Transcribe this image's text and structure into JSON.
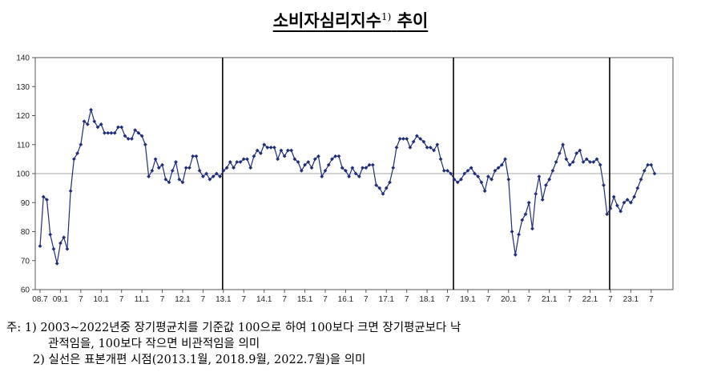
{
  "header": {
    "title": "소비자심리지수",
    "title_sup": "1)",
    "title_suffix": "추이"
  },
  "notes": {
    "prefix": "주:",
    "note1_line1": "1) 2003~2022년중 장기평균치를 기준값 100으로 하여 100보다 크면 장기평균보다 낙",
    "note1_line2": "관적임을, 100보다 작으면 비관적임을 의미",
    "note2": "2) 실선은 표본개편 시점(2013.1월, 2018.9월, 2022.7월)을 의미"
  },
  "colors": {
    "series": "#1f2d7a",
    "axis": "#555555",
    "reference": "#888888",
    "break": "#000000"
  },
  "chart_data": {
    "type": "line",
    "title": "소비자심리지수 추이",
    "ylim": [
      60,
      140
    ],
    "yticks": [
      60,
      70,
      80,
      90,
      100,
      110,
      120,
      130,
      140
    ],
    "reference_line": 100,
    "x_start": "2008-07",
    "x_end": "2023-12",
    "xtick_labels": [
      {
        "month": "2008-07",
        "label": "08.7"
      },
      {
        "month": "2009-01",
        "label": "09.1"
      },
      {
        "month": "2009-07",
        "label": "7"
      },
      {
        "month": "2010-01",
        "label": "10.1"
      },
      {
        "month": "2010-07",
        "label": "7"
      },
      {
        "month": "2011-01",
        "label": "11.1"
      },
      {
        "month": "2011-07",
        "label": "7"
      },
      {
        "month": "2012-01",
        "label": "12.1"
      },
      {
        "month": "2012-07",
        "label": "7"
      },
      {
        "month": "2013-01",
        "label": "13.1"
      },
      {
        "month": "2013-07",
        "label": "7"
      },
      {
        "month": "2014-01",
        "label": "14.1"
      },
      {
        "month": "2014-07",
        "label": "7"
      },
      {
        "month": "2015-01",
        "label": "15.1"
      },
      {
        "month": "2015-07",
        "label": "7"
      },
      {
        "month": "2016-01",
        "label": "16.1"
      },
      {
        "month": "2016-07",
        "label": "7"
      },
      {
        "month": "2017-01",
        "label": "17.1"
      },
      {
        "month": "2017-07",
        "label": "7"
      },
      {
        "month": "2018-01",
        "label": "18.1"
      },
      {
        "month": "2018-07",
        "label": "7"
      },
      {
        "month": "2019-01",
        "label": "19.1"
      },
      {
        "month": "2019-07",
        "label": "7"
      },
      {
        "month": "2020-01",
        "label": "20.1"
      },
      {
        "month": "2020-07",
        "label": "7"
      },
      {
        "month": "2021-01",
        "label": "21.1"
      },
      {
        "month": "2021-07",
        "label": "7"
      },
      {
        "month": "2022-01",
        "label": "22.1"
      },
      {
        "month": "2022-07",
        "label": "7"
      },
      {
        "month": "2023-01",
        "label": "23.1"
      },
      {
        "month": "2023-07",
        "label": "7"
      }
    ],
    "break_lines": [
      "2013-01",
      "2018-09",
      "2022-07"
    ],
    "series": [
      {
        "values": [
          75,
          92,
          91,
          79,
          74,
          69,
          76,
          78,
          74,
          94,
          105,
          107,
          110,
          118,
          117,
          122,
          118,
          116,
          117,
          114,
          114,
          114,
          114,
          116,
          116,
          113,
          112,
          112,
          115,
          114,
          113,
          110,
          99,
          101,
          105,
          102,
          103,
          98,
          97,
          101,
          104,
          98,
          97,
          102,
          102,
          106,
          106,
          101,
          99,
          100,
          98,
          99,
          100,
          99,
          101,
          102,
          104,
          102,
          104,
          104,
          105,
          105,
          102,
          106,
          108,
          107,
          110,
          109,
          109,
          109,
          105,
          108,
          106,
          108,
          108,
          105,
          104,
          101,
          103,
          104,
          102,
          105,
          106,
          99,
          101,
          103,
          105,
          106,
          106,
          102,
          101,
          99,
          102,
          100,
          99,
          102,
          102,
          103,
          103,
          96,
          95,
          93,
          95,
          97,
          102,
          109,
          112,
          112,
          112,
          109,
          111,
          113,
          112,
          111,
          109,
          109,
          108,
          110,
          105,
          101,
          101,
          100,
          98,
          97,
          98,
          100,
          101,
          102,
          100,
          99,
          97,
          94,
          99,
          98,
          101,
          102,
          103,
          105,
          98,
          80,
          72,
          79,
          84,
          86,
          90,
          81,
          93,
          99,
          91,
          96,
          98,
          101,
          104,
          107,
          110,
          105,
          103,
          104,
          107,
          108,
          104,
          105,
          104,
          104,
          105,
          103,
          96,
          86,
          88,
          92,
          89,
          87,
          90,
          91,
          90,
          92,
          95,
          98,
          101,
          103,
          103,
          100
        ]
      }
    ]
  }
}
